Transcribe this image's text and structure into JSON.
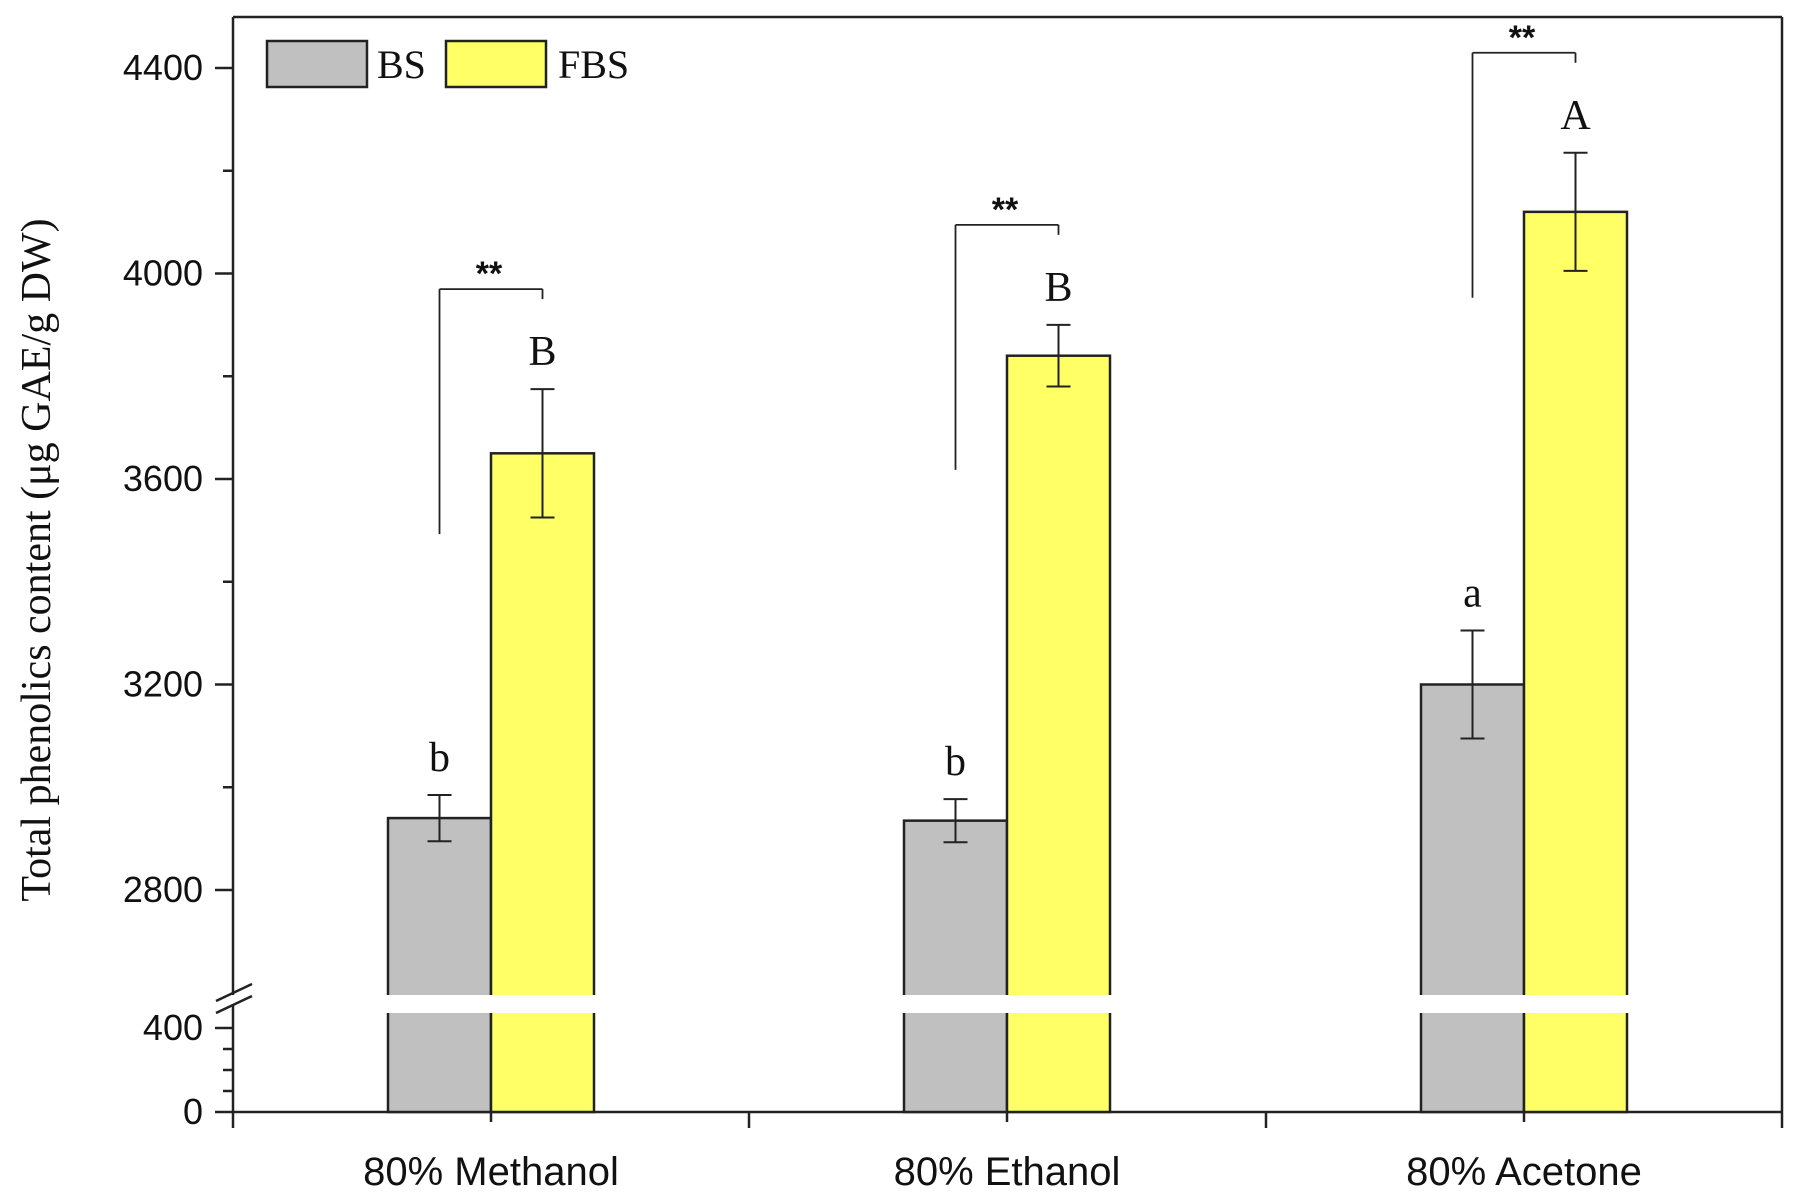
{
  "chart_data": {
    "type": "bar",
    "ylabel": "Total phenolics content (μg GAE/g DW)",
    "categories": [
      "80% Methanol",
      "80% Ethanol",
      "80% Acetone"
    ],
    "series": [
      {
        "name": "BS",
        "color": "#c0c0c0",
        "values": [
          2940,
          2935,
          3200
        ],
        "errors": [
          45,
          42,
          105
        ],
        "letters": [
          "b",
          "b",
          "a"
        ]
      },
      {
        "name": "FBS",
        "color": "#ffff66",
        "values": [
          3650,
          3840,
          4120
        ],
        "errors": [
          125,
          60,
          115
        ],
        "letters": [
          "B",
          "B",
          "A"
        ]
      }
    ],
    "significance": [
      "**",
      "**",
      "**"
    ],
    "y_axis_break": {
      "lower_range": [
        0,
        400
      ],
      "upper_range": [
        2600,
        4500
      ]
    },
    "upper_ticks": [
      2800,
      3200,
      3600,
      4000,
      4400
    ],
    "lower_ticks": [
      0,
      400
    ],
    "legend_position": "top-left"
  }
}
